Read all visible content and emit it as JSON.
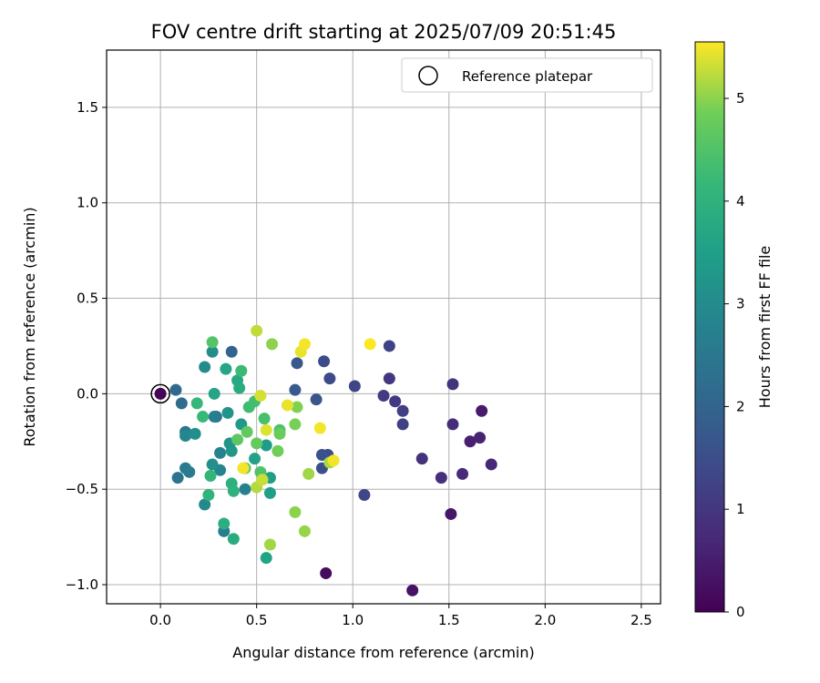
{
  "chart_data": {
    "type": "scatter",
    "title": "FOV centre drift starting at 2025/07/09 20:51:45",
    "xlabel": "Angular distance from reference (arcmin)",
    "ylabel": "Rotation from reference (arcmin)",
    "xlim": [
      -0.28,
      2.6
    ],
    "ylim": [
      -1.1,
      1.8
    ],
    "xticks": [
      0.0,
      0.5,
      1.0,
      1.5,
      2.0,
      2.5
    ],
    "xtick_labels": [
      "0.0",
      "0.5",
      "1.0",
      "1.5",
      "2.0",
      "2.5"
    ],
    "yticks": [
      -1.0,
      -0.5,
      0.0,
      0.5,
      1.0,
      1.5
    ],
    "ytick_labels": [
      "−1.0",
      "−0.5",
      "0.0",
      "0.5",
      "1.0",
      "1.5"
    ],
    "grid": true,
    "legend": {
      "position": "top-right",
      "entries": [
        "Reference platepar"
      ]
    },
    "reference_point": {
      "x": 0.0,
      "y": 0.0
    },
    "colorbar": {
      "label": "Hours from first FF file",
      "colormap": "viridis",
      "range": [
        0,
        5.55
      ],
      "ticks": [
        0,
        1,
        2,
        3,
        4,
        5
      ],
      "tick_labels": [
        "0",
        "1",
        "2",
        "3",
        "4",
        "5"
      ]
    },
    "series": [
      {
        "color_by": "hours",
        "points": [
          {
            "x": 0.0,
            "y": 0.0,
            "c": 0.05
          },
          {
            "x": 0.86,
            "y": -0.94,
            "c": 0.2
          },
          {
            "x": 1.31,
            "y": -1.03,
            "c": 0.3
          },
          {
            "x": 1.51,
            "y": -0.63,
            "c": 0.4
          },
          {
            "x": 1.67,
            "y": -0.09,
            "c": 0.45
          },
          {
            "x": 1.61,
            "y": -0.25,
            "c": 0.55
          },
          {
            "x": 1.66,
            "y": -0.23,
            "c": 0.6
          },
          {
            "x": 1.72,
            "y": -0.37,
            "c": 0.7
          },
          {
            "x": 1.57,
            "y": -0.42,
            "c": 0.75
          },
          {
            "x": 1.52,
            "y": -0.16,
            "c": 0.8
          },
          {
            "x": 1.46,
            "y": -0.44,
            "c": 0.85
          },
          {
            "x": 1.36,
            "y": -0.34,
            "c": 0.9
          },
          {
            "x": 1.52,
            "y": 0.05,
            "c": 0.95
          },
          {
            "x": 1.19,
            "y": 0.08,
            "c": 1.0
          },
          {
            "x": 1.22,
            "y": -0.04,
            "c": 1.05
          },
          {
            "x": 1.16,
            "y": -0.01,
            "c": 1.1
          },
          {
            "x": 1.26,
            "y": -0.09,
            "c": 1.15
          },
          {
            "x": 1.26,
            "y": -0.16,
            "c": 1.2
          },
          {
            "x": 1.19,
            "y": 0.25,
            "c": 1.25
          },
          {
            "x": 1.01,
            "y": 0.04,
            "c": 1.3
          },
          {
            "x": 1.06,
            "y": -0.53,
            "c": 1.35
          },
          {
            "x": 0.88,
            "y": 0.08,
            "c": 1.4
          },
          {
            "x": 0.85,
            "y": 0.17,
            "c": 1.45
          },
          {
            "x": 0.87,
            "y": -0.32,
            "c": 1.5
          },
          {
            "x": 0.84,
            "y": -0.39,
            "c": 1.55
          },
          {
            "x": 0.84,
            "y": -0.32,
            "c": 1.6
          },
          {
            "x": 0.81,
            "y": -0.03,
            "c": 1.65
          },
          {
            "x": 0.71,
            "y": 0.16,
            "c": 1.7
          },
          {
            "x": 0.7,
            "y": 0.02,
            "c": 1.8
          },
          {
            "x": 0.37,
            "y": 0.22,
            "c": 2.0
          },
          {
            "x": 0.08,
            "y": 0.02,
            "c": 2.1
          },
          {
            "x": 0.11,
            "y": -0.05,
            "c": 2.2
          },
          {
            "x": 0.29,
            "y": -0.12,
            "c": 2.3
          },
          {
            "x": 0.09,
            "y": -0.44,
            "c": 2.4
          },
          {
            "x": 0.13,
            "y": -0.2,
            "c": 2.5
          },
          {
            "x": 0.13,
            "y": -0.39,
            "c": 2.55
          },
          {
            "x": 0.15,
            "y": -0.41,
            "c": 2.6
          },
          {
            "x": 0.28,
            "y": -0.12,
            "c": 2.65
          },
          {
            "x": 0.33,
            "y": -0.72,
            "c": 2.7
          },
          {
            "x": 0.44,
            "y": -0.5,
            "c": 2.75
          },
          {
            "x": 0.31,
            "y": -0.31,
            "c": 2.8
          },
          {
            "x": 0.31,
            "y": -0.4,
            "c": 2.85
          },
          {
            "x": 0.13,
            "y": -0.22,
            "c": 2.9
          },
          {
            "x": 0.23,
            "y": -0.58,
            "c": 2.95
          },
          {
            "x": 0.23,
            "y": 0.14,
            "c": 3.0
          },
          {
            "x": 0.27,
            "y": 0.22,
            "c": 3.05
          },
          {
            "x": 0.18,
            "y": -0.21,
            "c": 3.1
          },
          {
            "x": 0.27,
            "y": -0.37,
            "c": 3.15
          },
          {
            "x": 0.36,
            "y": -0.26,
            "c": 3.2
          },
          {
            "x": 0.35,
            "y": -0.1,
            "c": 3.25
          },
          {
            "x": 0.37,
            "y": -0.3,
            "c": 3.3
          },
          {
            "x": 0.42,
            "y": -0.16,
            "c": 3.35
          },
          {
            "x": 0.55,
            "y": -0.27,
            "c": 3.4
          },
          {
            "x": 0.57,
            "y": -0.44,
            "c": 3.45
          },
          {
            "x": 0.57,
            "y": -0.52,
            "c": 3.5
          },
          {
            "x": 0.49,
            "y": -0.34,
            "c": 3.55
          },
          {
            "x": 0.55,
            "y": -0.86,
            "c": 3.6
          },
          {
            "x": 0.28,
            "y": 0.0,
            "c": 3.65
          },
          {
            "x": 0.34,
            "y": 0.13,
            "c": 3.7
          },
          {
            "x": 0.4,
            "y": 0.07,
            "c": 3.75
          },
          {
            "x": 0.41,
            "y": 0.03,
            "c": 3.8
          },
          {
            "x": 0.38,
            "y": -0.76,
            "c": 3.85
          },
          {
            "x": 0.33,
            "y": -0.68,
            "c": 3.9
          },
          {
            "x": 0.37,
            "y": -0.47,
            "c": 3.95
          },
          {
            "x": 0.38,
            "y": -0.51,
            "c": 4.0
          },
          {
            "x": 0.25,
            "y": -0.53,
            "c": 4.05
          },
          {
            "x": 0.26,
            "y": -0.43,
            "c": 4.1
          },
          {
            "x": 0.19,
            "y": -0.05,
            "c": 4.15
          },
          {
            "x": 0.22,
            "y": -0.12,
            "c": 4.2
          },
          {
            "x": 0.42,
            "y": 0.12,
            "c": 4.25
          },
          {
            "x": 0.46,
            "y": -0.07,
            "c": 4.3
          },
          {
            "x": 0.49,
            "y": -0.04,
            "c": 4.35
          },
          {
            "x": 0.54,
            "y": -0.13,
            "c": 4.4
          },
          {
            "x": 0.62,
            "y": -0.19,
            "c": 4.45
          },
          {
            "x": 0.52,
            "y": -0.41,
            "c": 4.5
          },
          {
            "x": 0.27,
            "y": 0.27,
            "c": 4.55
          },
          {
            "x": 0.44,
            "y": -0.39,
            "c": 4.6
          },
          {
            "x": 0.4,
            "y": -0.24,
            "c": 4.65
          },
          {
            "x": 0.45,
            "y": -0.2,
            "c": 4.7
          },
          {
            "x": 0.5,
            "y": -0.26,
            "c": 4.75
          },
          {
            "x": 0.62,
            "y": -0.21,
            "c": 4.8
          },
          {
            "x": 0.61,
            "y": -0.3,
            "c": 4.85
          },
          {
            "x": 0.7,
            "y": -0.16,
            "c": 4.9
          },
          {
            "x": 0.71,
            "y": -0.07,
            "c": 4.95
          },
          {
            "x": 0.7,
            "y": -0.62,
            "c": 5.0
          },
          {
            "x": 0.75,
            "y": -0.72,
            "c": 5.05
          },
          {
            "x": 0.77,
            "y": -0.42,
            "c": 5.1
          },
          {
            "x": 0.88,
            "y": -0.36,
            "c": 5.15
          },
          {
            "x": 0.57,
            "y": -0.79,
            "c": 5.1
          },
          {
            "x": 0.58,
            "y": 0.26,
            "c": 5.0
          },
          {
            "x": 0.5,
            "y": -0.49,
            "c": 5.2
          },
          {
            "x": 0.5,
            "y": 0.33,
            "c": 5.25
          },
          {
            "x": 0.53,
            "y": -0.45,
            "c": 5.3
          },
          {
            "x": 0.52,
            "y": -0.01,
            "c": 5.35
          },
          {
            "x": 0.55,
            "y": -0.19,
            "c": 5.4
          },
          {
            "x": 0.66,
            "y": -0.06,
            "c": 5.45
          },
          {
            "x": 0.73,
            "y": 0.22,
            "c": 5.45
          },
          {
            "x": 0.75,
            "y": 0.26,
            "c": 5.5
          },
          {
            "x": 0.83,
            "y": -0.18,
            "c": 5.5
          },
          {
            "x": 0.9,
            "y": -0.35,
            "c": 5.5
          },
          {
            "x": 1.09,
            "y": 0.26,
            "c": 5.55
          },
          {
            "x": 0.43,
            "y": -0.39,
            "c": 5.5
          }
        ]
      }
    ]
  }
}
